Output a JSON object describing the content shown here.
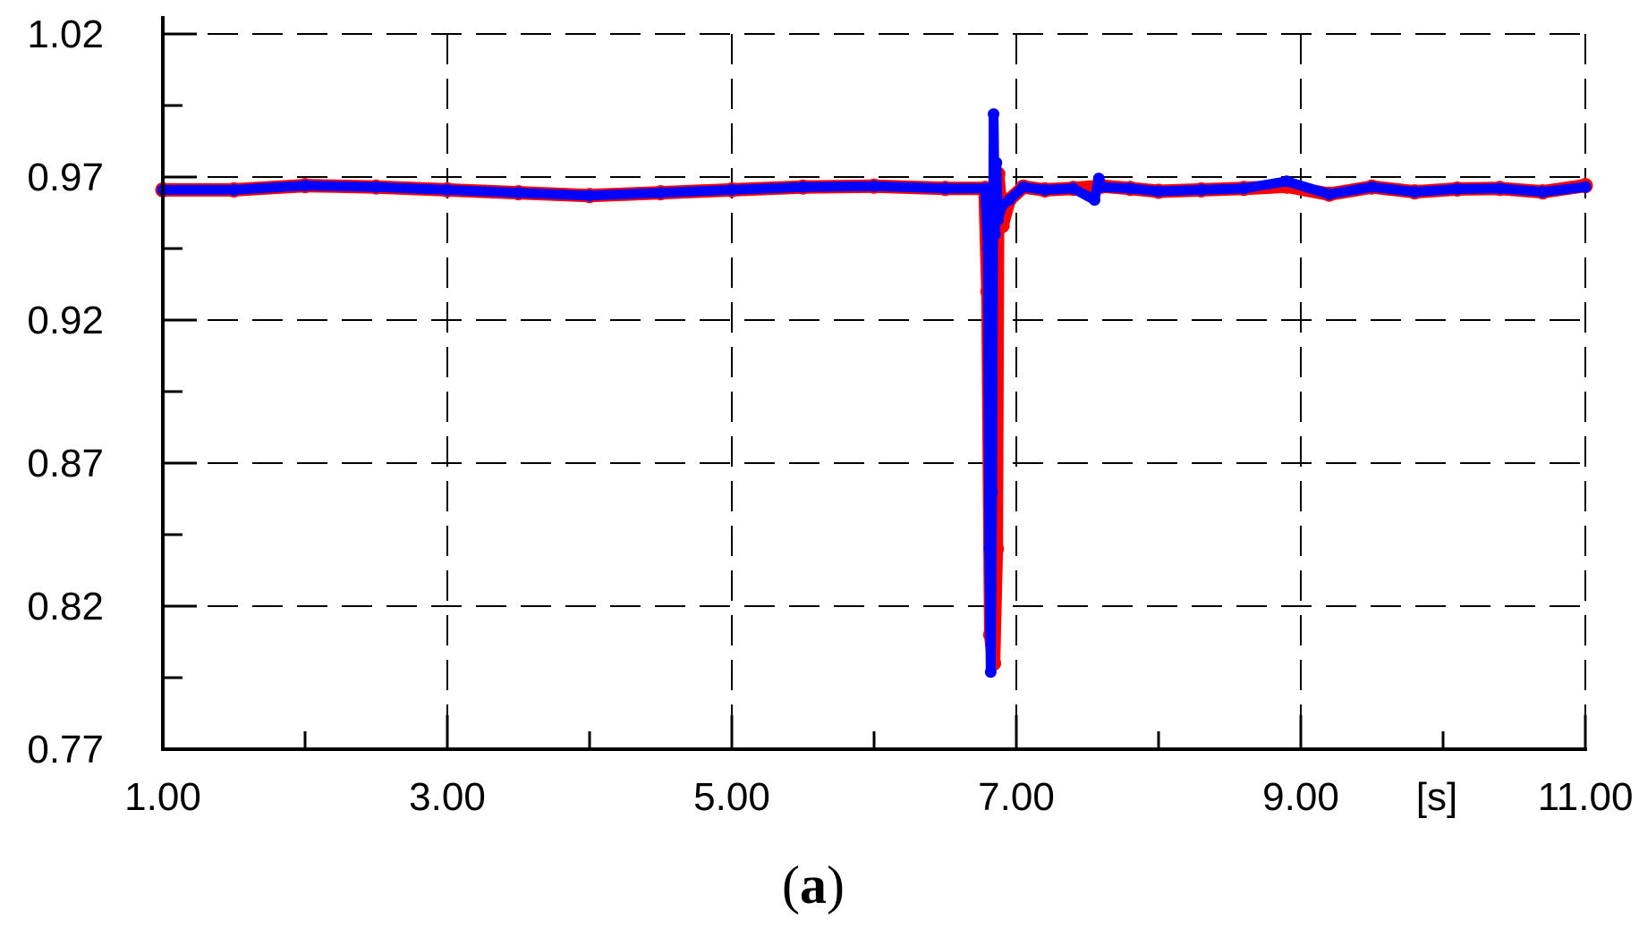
{
  "chart_data": {
    "type": "line",
    "title": "",
    "xlabel": "",
    "ylabel": "",
    "x_unit_label": "[s]",
    "caption": {
      "open": "(",
      "letter": "a",
      "close": ")"
    },
    "xlim": [
      1.0,
      11.0
    ],
    "ylim": [
      0.77,
      1.02
    ],
    "x_ticks": [
      1.0,
      3.0,
      5.0,
      7.0,
      9.0,
      11.0
    ],
    "x_tick_labels": [
      "1.00",
      "3.00",
      "5.00",
      "7.00",
      "9.00",
      "11.00"
    ],
    "x_minor_ticks": [
      2.0,
      4.0,
      6.0,
      8.0,
      10.0
    ],
    "y_ticks": [
      0.77,
      0.82,
      0.87,
      0.92,
      0.97,
      1.02
    ],
    "y_tick_labels": [
      "0.77",
      "0.82",
      "0.87",
      "0.92",
      "0.97",
      "1.02"
    ],
    "y_minor_ticks": [
      0.795,
      0.845,
      0.895,
      0.945,
      0.995
    ],
    "grid": true,
    "colors": {
      "series_red": "#ff0000",
      "series_blue": "#0000ff",
      "grid": "#000000"
    },
    "series": [
      {
        "color": "#ff0000",
        "x": [
          1.0,
          1.5,
          2.0,
          2.5,
          3.0,
          3.5,
          4.0,
          4.5,
          5.0,
          5.5,
          6.0,
          6.5,
          6.78,
          6.8,
          6.82,
          6.84,
          6.86,
          6.87,
          6.9,
          6.95,
          7.05,
          7.2,
          7.4,
          7.6,
          7.8,
          8.0,
          8.3,
          8.6,
          8.9,
          9.2,
          9.5,
          9.8,
          10.1,
          10.4,
          10.7,
          11.0
        ],
        "y": [
          0.9655,
          0.9655,
          0.967,
          0.9665,
          0.9655,
          0.9645,
          0.9635,
          0.9645,
          0.9655,
          0.9665,
          0.9668,
          0.966,
          0.966,
          0.93,
          0.81,
          0.8,
          0.84,
          0.971,
          0.953,
          0.962,
          0.9665,
          0.9655,
          0.966,
          0.9668,
          0.966,
          0.965,
          0.9655,
          0.966,
          0.9668,
          0.964,
          0.9665,
          0.9648,
          0.9658,
          0.966,
          0.9648,
          0.967
        ]
      },
      {
        "color": "#0000ff",
        "x": [
          1.0,
          1.5,
          2.0,
          2.5,
          3.0,
          3.5,
          4.0,
          4.5,
          5.0,
          5.5,
          6.0,
          6.5,
          6.78,
          6.8,
          6.81,
          6.82,
          6.83,
          6.84,
          6.85,
          6.86,
          6.87,
          6.9,
          6.95,
          7.05,
          7.2,
          7.4,
          7.55,
          7.58,
          7.6,
          7.8,
          8.0,
          8.3,
          8.6,
          8.9,
          9.2,
          9.5,
          9.8,
          10.1,
          10.4,
          10.7,
          11.0
        ],
        "y": [
          0.9655,
          0.9655,
          0.967,
          0.9665,
          0.9655,
          0.9645,
          0.9635,
          0.9645,
          0.9655,
          0.9665,
          0.9668,
          0.966,
          0.966,
          0.945,
          0.84,
          0.797,
          0.86,
          0.992,
          0.95,
          0.975,
          0.955,
          0.96,
          0.962,
          0.9665,
          0.9655,
          0.966,
          0.962,
          0.9695,
          0.9665,
          0.966,
          0.965,
          0.9655,
          0.966,
          0.9685,
          0.964,
          0.9665,
          0.9648,
          0.9658,
          0.966,
          0.9648,
          0.9665
        ]
      }
    ]
  }
}
